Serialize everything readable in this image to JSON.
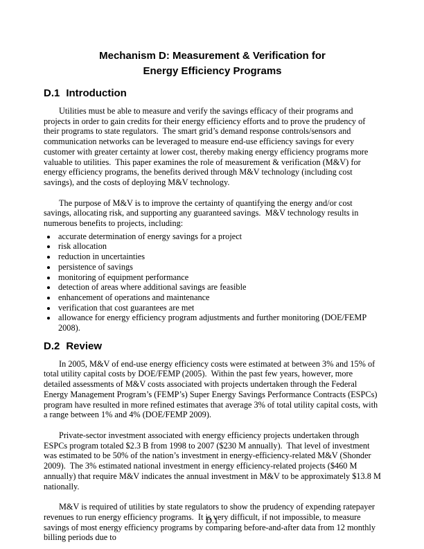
{
  "document": {
    "title_line1": "Mechanism D: Measurement & Verification for",
    "title_line2": "Energy Efficiency Programs",
    "page_number": "D.1"
  },
  "sections": [
    {
      "number": "D.1",
      "title": "Introduction",
      "paragraphs": [
        "Utilities must be able to measure and verify the savings efficacy of their programs and projects in order to gain credits for their energy efficiency efforts and to prove the prudency of their programs to state regulators.  The smart grid’s demand response controls/sensors and communication networks can be leveraged to measure end-use efficiency savings for every customer with greater certainty at lower cost, thereby making energy efficiency programs more valuable to utilities.  This paper examines the role of measurement & verification (M&V) for energy efficiency programs, the benefits derived through M&V technology (including cost savings), and the costs of deploying M&V technology.",
        "The purpose of M&V is to improve the certainty of quantifying the energy and/or cost savings, allocating risk, and supporting any guaranteed savings.  M&V technology results in numerous benefits to projects, including:"
      ],
      "bullets": [
        "accurate determination of energy savings for a project",
        "risk allocation",
        "reduction in uncertainties",
        "persistence of savings",
        "monitoring of equipment performance",
        "detection of areas where additional savings are feasible",
        "enhancement of operations and maintenance",
        "verification that cost guarantees are met",
        "allowance for energy efficiency program adjustments and further monitoring (DOE/FEMP 2008)."
      ]
    },
    {
      "number": "D.2",
      "title": "Review",
      "paragraphs": [
        "In 2005, M&V of end-use energy efficiency costs were estimated at between 3% and 15% of total utility capital costs by DOE/FEMP (2005).  Within the past few years, however, more detailed assessments of M&V costs associated with projects undertaken through the Federal Energy Management Program’s (FEMP’s) Super Energy Savings Performance Contracts (ESPCs) program have resulted in more refined estimates that average 3% of total utility capital costs, with a range between 1% and 4% (DOE/FEMP 2009).",
        "Private-sector investment associated with energy efficiency projects undertaken through ESPCs program totaled $2.3 B from 1998 to 2007 ($230 M annually).  That level of investment was estimated to be 50% of the nation’s investment in energy-efficiency-related M&V (Shonder 2009).  The 3% estimated national investment in energy efficiency-related projects ($460 M annually) that require M&V indicates the annual investment in M&V to be approximately $13.8 M nationally.",
        "M&V is required of utilities by state regulators to show the prudency of expending ratepayer revenues to run energy efficiency programs.  It is very difficult, if not impossible, to measure savings of most energy efficiency programs by comparing before-and-after data from 12 monthly billing periods due to"
      ]
    }
  ]
}
